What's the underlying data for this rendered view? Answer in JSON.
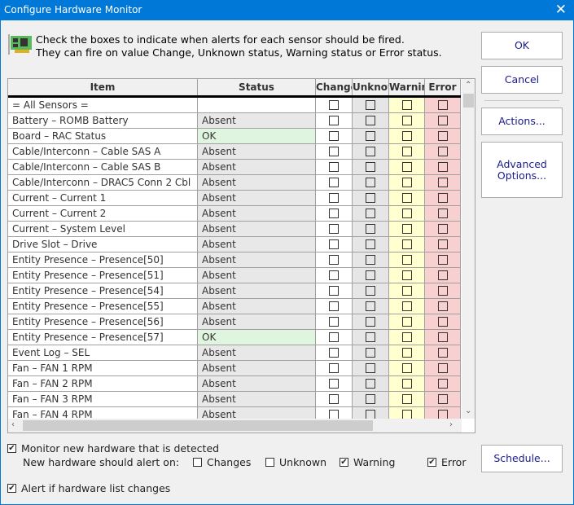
{
  "window": {
    "title": "Configure Hardware Monitor",
    "close_icon": "close-icon"
  },
  "intro": {
    "icon": "circuit-board-icon",
    "line1": "Check the boxes to indicate when alerts for each sensor should be fired.",
    "line2": "They can fire on value Change, Unknown status, Warning status or Error status."
  },
  "grid": {
    "columns": [
      "Item",
      "Status",
      "Change",
      "Unknown",
      "Warning",
      "Error"
    ],
    "column_colors": {
      "unknown": "#e6e6e6",
      "warning": "#ffffd0",
      "error": "#f9d0d0",
      "ok_status": "#e0f5e0"
    },
    "rows": [
      {
        "item": "= All Sensors =",
        "status": ""
      },
      {
        "item": "Battery – ROMB Battery",
        "status": "Absent"
      },
      {
        "item": "Board – RAC Status",
        "status": "OK"
      },
      {
        "item": "Cable/Interconn – Cable SAS A",
        "status": "Absent"
      },
      {
        "item": "Cable/Interconn – Cable SAS B",
        "status": "Absent"
      },
      {
        "item": "Cable/Interconn – DRAC5 Conn 2 Cbl",
        "status": "Absent"
      },
      {
        "item": "Current – Current 1",
        "status": "Absent"
      },
      {
        "item": "Current – Current 2",
        "status": "Absent"
      },
      {
        "item": "Current – System Level",
        "status": "Absent"
      },
      {
        "item": "Drive Slot – Drive",
        "status": "Absent"
      },
      {
        "item": "Entity Presence – Presence[50]",
        "status": "Absent"
      },
      {
        "item": "Entity Presence – Presence[51]",
        "status": "Absent"
      },
      {
        "item": "Entity Presence – Presence[54]",
        "status": "Absent"
      },
      {
        "item": "Entity Presence – Presence[55]",
        "status": "Absent"
      },
      {
        "item": "Entity Presence – Presence[56]",
        "status": "Absent"
      },
      {
        "item": "Entity Presence – Presence[57]",
        "status": "OK"
      },
      {
        "item": "Event Log – SEL",
        "status": "Absent"
      },
      {
        "item": "Fan – FAN 1 RPM",
        "status": "Absent"
      },
      {
        "item": "Fan – FAN 2 RPM",
        "status": "Absent"
      },
      {
        "item": "Fan – FAN 3 RPM",
        "status": "Absent"
      },
      {
        "item": "Fan – FAN 4 RPM",
        "status": "Absent"
      }
    ]
  },
  "buttons": {
    "ok": "OK",
    "cancel": "Cancel",
    "actions": "Actions...",
    "advanced_1": "Advanced",
    "advanced_2": "Options...",
    "schedule": "Schedule..."
  },
  "options": {
    "monitor_new": {
      "label": "Monitor new hardware that is detected",
      "checked": true
    },
    "alert_on_label": "New hardware should alert on:",
    "changes": {
      "label": "Changes",
      "checked": false
    },
    "unknown": {
      "label": "Unknown",
      "checked": false
    },
    "warning": {
      "label": "Warning",
      "checked": true
    },
    "error": {
      "label": "Error",
      "checked": true
    },
    "alert_list": {
      "label": "Alert if hardware list changes",
      "checked": true
    }
  }
}
